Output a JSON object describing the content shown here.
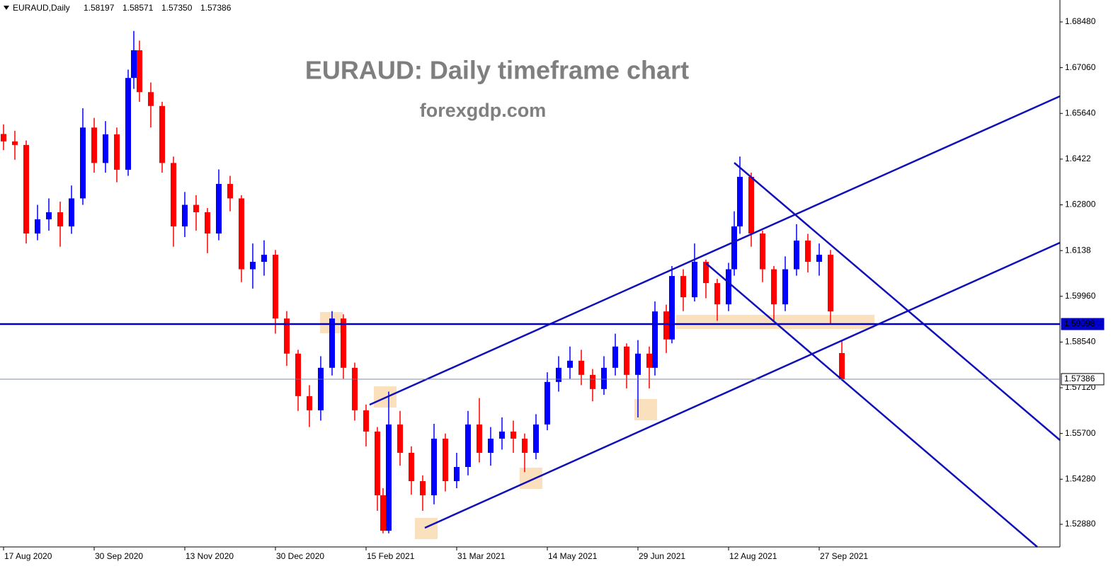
{
  "chart_data": {
    "type": "candlestick",
    "header": {
      "symbol": "EURAUD,Daily",
      "ohlc": [
        "1.58197",
        "1.58571",
        "1.57350",
        "1.57386"
      ]
    },
    "title": "EURAUD: Daily timeframe chart",
    "subtitle": "forexgdp.com",
    "up_color": "#0000ff",
    "down_color": "#ff0000",
    "x": [
      0,
      4,
      8,
      12,
      16,
      20,
      24,
      28,
      32,
      36,
      40,
      44,
      46,
      48,
      52,
      56,
      60,
      64,
      68,
      72,
      76,
      80,
      84,
      88,
      92,
      96,
      100,
      104,
      108,
      112,
      116,
      120,
      124,
      128,
      132,
      134,
      136,
      140,
      144,
      148,
      152,
      156,
      160,
      164,
      168,
      172,
      176,
      180,
      184,
      188,
      192,
      196,
      200,
      204,
      208,
      212,
      216,
      220,
      224,
      228,
      230,
      234,
      236,
      240,
      244,
      248,
      252,
      256,
      258,
      260,
      264,
      268,
      272,
      276,
      280,
      284,
      288,
      292,
      296
    ],
    "ohlc": [
      [
        1.65,
        1.653,
        1.645,
        1.6477
      ],
      [
        1.6477,
        1.651,
        1.642,
        1.6466
      ],
      [
        1.6466,
        1.648,
        1.616,
        1.6191
      ],
      [
        1.6191,
        1.628,
        1.617,
        1.6235
      ],
      [
        1.6235,
        1.63,
        1.62,
        1.6257
      ],
      [
        1.6257,
        1.629,
        1.615,
        1.6213
      ],
      [
        1.6213,
        1.634,
        1.619,
        1.63
      ],
      [
        1.63,
        1.658,
        1.628,
        1.652
      ],
      [
        1.652,
        1.655,
        1.638,
        1.641
      ],
      [
        1.641,
        1.654,
        1.638,
        1.6499
      ],
      [
        1.6499,
        1.652,
        1.635,
        1.6389
      ],
      [
        1.6389,
        1.67,
        1.637,
        1.6674
      ],
      [
        1.6674,
        1.682,
        1.664,
        1.676
      ],
      [
        1.676,
        1.679,
        1.66,
        1.663
      ],
      [
        1.663,
        1.666,
        1.652,
        1.6587
      ],
      [
        1.6587,
        1.66,
        1.638,
        1.641
      ],
      [
        1.641,
        1.643,
        1.615,
        1.6213
      ],
      [
        1.6213,
        1.632,
        1.618,
        1.628
      ],
      [
        1.628,
        1.631,
        1.62,
        1.6257
      ],
      [
        1.6257,
        1.627,
        1.613,
        1.6191
      ],
      [
        1.6191,
        1.639,
        1.617,
        1.6345
      ],
      [
        1.6345,
        1.637,
        1.626,
        1.63
      ],
      [
        1.63,
        1.631,
        1.604,
        1.608
      ],
      [
        1.608,
        1.616,
        1.602,
        1.6103
      ],
      [
        1.6103,
        1.617,
        1.606,
        1.6125
      ],
      [
        1.6125,
        1.614,
        1.588,
        1.5927
      ],
      [
        1.5927,
        1.595,
        1.578,
        1.5818
      ],
      [
        1.5818,
        1.583,
        1.564,
        1.5686
      ],
      [
        1.5686,
        1.572,
        1.559,
        1.5642
      ],
      [
        1.5642,
        1.581,
        1.561,
        1.5774
      ],
      [
        1.5774,
        1.595,
        1.575,
        1.5927
      ],
      [
        1.5927,
        1.594,
        1.574,
        1.5774
      ],
      [
        1.5774,
        1.579,
        1.561,
        1.5642
      ],
      [
        1.5642,
        1.566,
        1.553,
        1.5576
      ],
      [
        1.5576,
        1.559,
        1.533,
        1.5378
      ],
      [
        1.5378,
        1.54,
        1.526,
        1.5268
      ],
      [
        1.5268,
        1.57,
        1.526,
        1.5598
      ],
      [
        1.5598,
        1.564,
        1.547,
        1.551
      ],
      [
        1.551,
        1.553,
        1.538,
        1.5422
      ],
      [
        1.5422,
        1.544,
        1.533,
        1.5378
      ],
      [
        1.5378,
        1.56,
        1.535,
        1.5554
      ],
      [
        1.5554,
        1.557,
        1.539,
        1.5422
      ],
      [
        1.5422,
        1.551,
        1.54,
        1.5466
      ],
      [
        1.5466,
        1.564,
        1.544,
        1.5598
      ],
      [
        1.5598,
        1.568,
        1.548,
        1.551
      ],
      [
        1.551,
        1.559,
        1.547,
        1.5554
      ],
      [
        1.5554,
        1.562,
        1.552,
        1.5576
      ],
      [
        1.5576,
        1.561,
        1.551,
        1.5554
      ],
      [
        1.5554,
        1.557,
        1.545,
        1.551
      ],
      [
        1.551,
        1.563,
        1.549,
        1.5598
      ],
      [
        1.5598,
        1.576,
        1.558,
        1.573
      ],
      [
        1.573,
        1.581,
        1.57,
        1.5774
      ],
      [
        1.5774,
        1.584,
        1.574,
        1.5796
      ],
      [
        1.5796,
        1.583,
        1.572,
        1.5752
      ],
      [
        1.5752,
        1.577,
        1.567,
        1.5708
      ],
      [
        1.5708,
        1.581,
        1.569,
        1.5774
      ],
      [
        1.5774,
        1.588,
        1.575,
        1.584
      ],
      [
        1.584,
        1.585,
        1.571,
        1.5752
      ],
      [
        1.5752,
        1.586,
        1.562,
        1.5818
      ],
      [
        1.5818,
        1.584,
        1.571,
        1.5774
      ],
      [
        1.5774,
        1.598,
        1.575,
        1.5949
      ],
      [
        1.5949,
        1.597,
        1.582,
        1.5862
      ],
      [
        1.5862,
        1.609,
        1.585,
        1.6059
      ],
      [
        1.6059,
        1.608,
        1.595,
        1.5993
      ],
      [
        1.5993,
        1.616,
        1.598,
        1.6103
      ],
      [
        1.6103,
        1.611,
        1.599,
        1.6037
      ],
      [
        1.6037,
        1.605,
        1.592,
        1.5971
      ],
      [
        1.5971,
        1.61,
        1.595,
        1.608
      ],
      [
        1.608,
        1.626,
        1.606,
        1.6213
      ],
      [
        1.6213,
        1.643,
        1.619,
        1.6367
      ],
      [
        1.6367,
        1.638,
        1.615,
        1.6191
      ],
      [
        1.6191,
        1.62,
        1.604,
        1.608
      ],
      [
        1.608,
        1.609,
        1.592,
        1.5971
      ],
      [
        1.5971,
        1.612,
        1.595,
        1.608
      ],
      [
        1.608,
        1.622,
        1.606,
        1.6169
      ],
      [
        1.6169,
        1.619,
        1.607,
        1.6103
      ],
      [
        1.6103,
        1.616,
        1.606,
        1.6125
      ],
      [
        1.6125,
        1.614,
        1.591,
        1.5949
      ],
      [
        1.58197,
        1.58571,
        1.5735,
        1.57386
      ]
    ],
    "xlim": [
      -1.25,
      373
    ],
    "xticks": [
      {
        "value": 0,
        "label": "17 Aug 2020"
      },
      {
        "value": 32,
        "label": "30 Sep 2020"
      },
      {
        "value": 64,
        "label": "13 Nov 2020"
      },
      {
        "value": 96,
        "label": "30 Dec 2020"
      },
      {
        "value": 128,
        "label": "15 Feb 2021"
      },
      {
        "value": 160,
        "label": "31 Mar 2021"
      },
      {
        "value": 192,
        "label": "14 May 2021"
      },
      {
        "value": 224,
        "label": "29 Jun 2021"
      },
      {
        "value": 256,
        "label": "12 Aug 2021"
      },
      {
        "value": 288,
        "label": "27 Sep 2021"
      }
    ],
    "ylim": [
      1.52177,
      1.69161
    ],
    "yticks": [
      {
        "value": 1.6848,
        "label": "1.68480"
      },
      {
        "value": 1.6706,
        "label": "1.67060"
      },
      {
        "value": 1.6564,
        "label": "1.65640"
      },
      1.6422,
      {
        "value": 1.628,
        "label": "1.62800"
      },
      1.6138,
      {
        "value": 1.5996,
        "label": "1.59960"
      },
      {
        "value": 1.5854,
        "label": "1.58540"
      },
      {
        "value": 1.5712,
        "label": "1.57120"
      },
      {
        "value": 1.557,
        "label": "1.55700"
      },
      {
        "value": 1.5428,
        "label": "1.54280"
      },
      {
        "value": 1.5288,
        "label": "1.52880"
      }
    ],
    "levels": [
      {
        "value": 1.59098,
        "color": "#0000c8"
      },
      {
        "value": 1.57386,
        "color": "#6a7c9a"
      }
    ]
  }
}
